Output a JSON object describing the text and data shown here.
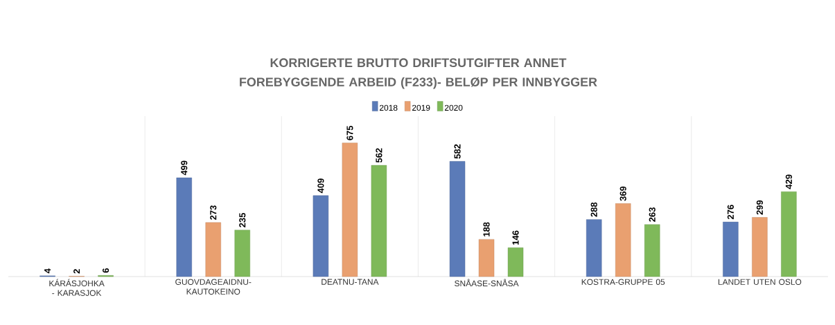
{
  "chart_data": {
    "type": "bar",
    "title": "KORRIGERTE BRUTTO DRIFTSUTGIFTER ANNET FOREBYGGENDE ARBEID (F233)- BELØP PER INNBYGGER",
    "categories": [
      "KÁRÁSJOHKA - KARASJOK",
      "GUOVDAGEAIDNU-KAUTOKEINO",
      "DEATNU-TANA",
      "SNÅASE-SNÅSA",
      "KOSTRA-GRUPPE 05",
      "LANDET UTEN OSLO"
    ],
    "series": [
      {
        "name": "2018",
        "color": "#5b7bb8",
        "values": [
          4,
          499,
          409,
          582,
          288,
          276
        ]
      },
      {
        "name": "2019",
        "color": "#e9a070",
        "values": [
          2,
          273,
          675,
          188,
          369,
          299
        ]
      },
      {
        "name": "2020",
        "color": "#7fb95a",
        "values": [
          6,
          235,
          562,
          146,
          263,
          429
        ]
      }
    ],
    "data_labels": true,
    "legend": "top"
  }
}
